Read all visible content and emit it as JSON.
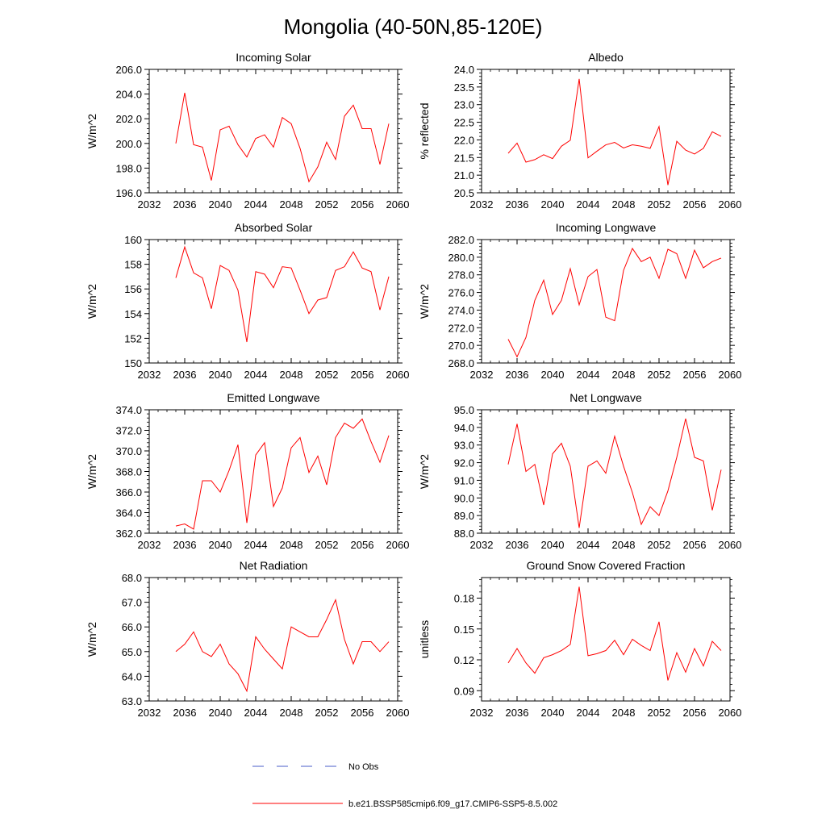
{
  "figure": {
    "title": "Mongolia (40-50N,85-120E)"
  },
  "colors": {
    "model_line": "#ff0000",
    "obs_line": "#4a5ec9",
    "axis": "#000000",
    "background": "#ffffff"
  },
  "legend": {
    "placement": "bottom-center",
    "entries": [
      {
        "label": "No Obs",
        "style": "dashed",
        "color": "#4a5ec9"
      },
      {
        "label": "b.e21.BSSP585cmip6.f09_g17.CMIP6-SSP5-8.5.002",
        "style": "solid",
        "color": "#ff0000"
      }
    ]
  },
  "chart_data": [
    {
      "type": "line",
      "title": "Incoming Solar",
      "xlabel": "",
      "ylabel": "W/m^2",
      "xlim": [
        2032,
        2060
      ],
      "ylim": [
        196,
        206
      ],
      "x_ticks": [
        2032,
        2036,
        2040,
        2044,
        2048,
        2052,
        2056,
        2060
      ],
      "x_tick_labels": [
        "2032",
        "2036",
        "2040",
        "2044",
        "2048",
        "2052",
        "2056",
        "2060"
      ],
      "y_ticks": [
        196,
        198,
        200,
        202,
        204,
        206
      ],
      "y_tick_labels": [
        "196.0",
        "198.0",
        "200.0",
        "202.0",
        "204.0",
        "206.0"
      ],
      "grid": false,
      "x": [
        2035,
        2036,
        2037,
        2038,
        2039,
        2040,
        2041,
        2042,
        2043,
        2044,
        2045,
        2046,
        2047,
        2048,
        2049,
        2050,
        2051,
        2052,
        2053,
        2054,
        2055,
        2056,
        2057,
        2058,
        2059
      ],
      "series": [
        {
          "values": [
            200.0,
            204.1,
            199.9,
            199.7,
            197.0,
            201.1,
            201.4,
            199.9,
            198.9,
            200.4,
            200.7,
            199.7,
            202.1,
            201.6,
            199.6,
            196.9,
            198.1,
            200.1,
            198.7,
            202.2,
            203.1,
            201.2,
            201.2,
            198.3,
            201.6
          ]
        }
      ]
    },
    {
      "type": "line",
      "title": "Albedo",
      "xlabel": "",
      "ylabel": "% reflected",
      "xlim": [
        2032,
        2060
      ],
      "ylim": [
        20.5,
        24.0
      ],
      "x_ticks": [
        2032,
        2036,
        2040,
        2044,
        2048,
        2052,
        2056,
        2060
      ],
      "x_tick_labels": [
        "2032",
        "2036",
        "2040",
        "2044",
        "2048",
        "2052",
        "2056",
        "2060"
      ],
      "y_ticks": [
        20.5,
        21.0,
        21.5,
        22.0,
        22.5,
        23.0,
        23.5,
        24.0
      ],
      "y_tick_labels": [
        "20.5",
        "21.0",
        "21.5",
        "22.0",
        "22.5",
        "23.0",
        "23.5",
        "24.0"
      ],
      "grid": false,
      "x": [
        2035,
        2036,
        2037,
        2038,
        2039,
        2040,
        2041,
        2042,
        2043,
        2044,
        2045,
        2046,
        2047,
        2048,
        2049,
        2050,
        2051,
        2052,
        2053,
        2054,
        2055,
        2056,
        2057,
        2058,
        2059
      ],
      "series": [
        {
          "values": [
            21.62,
            21.91,
            21.37,
            21.44,
            21.58,
            21.47,
            21.82,
            21.99,
            23.73,
            21.49,
            21.68,
            21.86,
            21.93,
            21.77,
            21.86,
            21.82,
            21.76,
            22.38,
            20.72,
            21.96,
            21.71,
            21.6,
            21.76,
            22.23,
            22.1
          ]
        }
      ]
    },
    {
      "type": "line",
      "title": "Absorbed Solar",
      "xlabel": "",
      "ylabel": "W/m^2",
      "xlim": [
        2032,
        2060
      ],
      "ylim": [
        150,
        160
      ],
      "x_ticks": [
        2032,
        2036,
        2040,
        2044,
        2048,
        2052,
        2056,
        2060
      ],
      "x_tick_labels": [
        "2032",
        "2036",
        "2040",
        "2044",
        "2048",
        "2052",
        "2056",
        "2060"
      ],
      "y_ticks": [
        150,
        152,
        154,
        156,
        158,
        160
      ],
      "y_tick_labels": [
        "150",
        "152",
        "154",
        "156",
        "158",
        "160"
      ],
      "grid": false,
      "x": [
        2035,
        2036,
        2037,
        2038,
        2039,
        2040,
        2041,
        2042,
        2043,
        2044,
        2045,
        2046,
        2047,
        2048,
        2049,
        2050,
        2051,
        2052,
        2053,
        2054,
        2055,
        2056,
        2057,
        2058,
        2059
      ],
      "series": [
        {
          "values": [
            156.9,
            159.4,
            157.3,
            156.9,
            154.4,
            157.9,
            157.5,
            155.9,
            151.7,
            157.4,
            157.2,
            156.1,
            157.8,
            157.7,
            155.9,
            154.0,
            155.1,
            155.3,
            157.5,
            157.8,
            159.0,
            157.7,
            157.4,
            154.3,
            157.0
          ]
        }
      ]
    },
    {
      "type": "line",
      "title": "Incoming Longwave",
      "xlabel": "",
      "ylabel": "W/m^2",
      "xlim": [
        2032,
        2060
      ],
      "ylim": [
        268,
        282
      ],
      "x_ticks": [
        2032,
        2036,
        2040,
        2044,
        2048,
        2052,
        2056,
        2060
      ],
      "x_tick_labels": [
        "2032",
        "2036",
        "2040",
        "2044",
        "2048",
        "2052",
        "2056",
        "2060"
      ],
      "y_ticks": [
        268,
        270,
        272,
        274,
        276,
        278,
        280,
        282
      ],
      "y_tick_labels": [
        "268.0",
        "270.0",
        "272.0",
        "274.0",
        "276.0",
        "278.0",
        "280.0",
        "282.0"
      ],
      "grid": false,
      "x": [
        2035,
        2036,
        2037,
        2038,
        2039,
        2040,
        2041,
        2042,
        2043,
        2044,
        2045,
        2046,
        2047,
        2048,
        2049,
        2050,
        2051,
        2052,
        2053,
        2054,
        2055,
        2056,
        2057,
        2058,
        2059
      ],
      "series": [
        {
          "values": [
            270.7,
            268.7,
            270.9,
            275.1,
            277.4,
            273.5,
            275.1,
            278.7,
            274.6,
            277.8,
            278.6,
            273.2,
            272.8,
            278.5,
            281.0,
            279.5,
            280.0,
            277.6,
            280.9,
            280.4,
            277.6,
            280.8,
            278.8,
            279.5,
            279.9
          ]
        }
      ]
    },
    {
      "type": "line",
      "title": "Emitted Longwave",
      "xlabel": "",
      "ylabel": "W/m^2",
      "xlim": [
        2032,
        2060
      ],
      "ylim": [
        362,
        374
      ],
      "x_ticks": [
        2032,
        2036,
        2040,
        2044,
        2048,
        2052,
        2056,
        2060
      ],
      "x_tick_labels": [
        "2032",
        "2036",
        "2040",
        "2044",
        "2048",
        "2052",
        "2056",
        "2060"
      ],
      "y_ticks": [
        362,
        364,
        366,
        368,
        370,
        372,
        374
      ],
      "y_tick_labels": [
        "362.0",
        "364.0",
        "366.0",
        "368.0",
        "370.0",
        "372.0",
        "374.0"
      ],
      "grid": false,
      "x": [
        2035,
        2036,
        2037,
        2038,
        2039,
        2040,
        2041,
        2042,
        2043,
        2044,
        2045,
        2046,
        2047,
        2048,
        2049,
        2050,
        2051,
        2052,
        2053,
        2054,
        2055,
        2056,
        2057,
        2058,
        2059
      ],
      "series": [
        {
          "values": [
            362.7,
            362.9,
            362.4,
            367.1,
            367.1,
            366.0,
            368.1,
            370.6,
            363.0,
            369.6,
            370.8,
            364.6,
            366.4,
            370.3,
            371.3,
            367.9,
            369.5,
            366.7,
            371.3,
            372.7,
            372.2,
            373.1,
            370.9,
            368.9,
            371.5
          ]
        }
      ]
    },
    {
      "type": "line",
      "title": "Net Longwave",
      "xlabel": "",
      "ylabel": "W/m^2",
      "xlim": [
        2032,
        2060
      ],
      "ylim": [
        88,
        95
      ],
      "x_ticks": [
        2032,
        2036,
        2040,
        2044,
        2048,
        2052,
        2056,
        2060
      ],
      "x_tick_labels": [
        "2032",
        "2036",
        "2040",
        "2044",
        "2048",
        "2052",
        "2056",
        "2060"
      ],
      "y_ticks": [
        88,
        89,
        90,
        91,
        92,
        93,
        94,
        95
      ],
      "y_tick_labels": [
        "88.0",
        "89.0",
        "90.0",
        "91.0",
        "92.0",
        "93.0",
        "94.0",
        "95.0"
      ],
      "grid": false,
      "x": [
        2035,
        2036,
        2037,
        2038,
        2039,
        2040,
        2041,
        2042,
        2043,
        2044,
        2045,
        2046,
        2047,
        2048,
        2049,
        2050,
        2051,
        2052,
        2053,
        2054,
        2055,
        2056,
        2057,
        2058,
        2059
      ],
      "series": [
        {
          "values": [
            91.9,
            94.2,
            91.5,
            91.9,
            89.6,
            92.5,
            93.1,
            91.8,
            88.3,
            91.8,
            92.1,
            91.4,
            93.5,
            91.8,
            90.3,
            88.5,
            89.5,
            89.0,
            90.4,
            92.3,
            94.5,
            92.3,
            92.1,
            89.3,
            91.6
          ]
        }
      ]
    },
    {
      "type": "line",
      "title": "Net Radiation",
      "xlabel": "",
      "ylabel": "W/m^2",
      "xlim": [
        2032,
        2060
      ],
      "ylim": [
        63,
        68
      ],
      "x_ticks": [
        2032,
        2036,
        2040,
        2044,
        2048,
        2052,
        2056,
        2060
      ],
      "x_tick_labels": [
        "2032",
        "2036",
        "2040",
        "2044",
        "2048",
        "2052",
        "2056",
        "2060"
      ],
      "y_ticks": [
        63,
        64,
        65,
        66,
        67,
        68
      ],
      "y_tick_labels": [
        "63.0",
        "64.0",
        "65.0",
        "66.0",
        "67.0",
        "68.0"
      ],
      "grid": false,
      "x": [
        2035,
        2036,
        2037,
        2038,
        2039,
        2040,
        2041,
        2042,
        2043,
        2044,
        2045,
        2046,
        2047,
        2048,
        2049,
        2050,
        2051,
        2052,
        2053,
        2054,
        2055,
        2056,
        2057,
        2058,
        2059
      ],
      "series": [
        {
          "values": [
            65.0,
            65.3,
            65.8,
            65.0,
            64.8,
            65.3,
            64.5,
            64.1,
            63.4,
            65.6,
            65.1,
            64.7,
            64.3,
            66.0,
            65.8,
            65.6,
            65.6,
            66.3,
            67.1,
            65.5,
            64.5,
            65.4,
            65.4,
            65.0,
            65.4
          ]
        }
      ]
    },
    {
      "type": "line",
      "title": "Ground Snow Covered Fraction",
      "xlabel": "",
      "ylabel": "unitless",
      "xlim": [
        2032,
        2060
      ],
      "ylim": [
        0.08,
        0.2
      ],
      "x_ticks": [
        2032,
        2036,
        2040,
        2044,
        2048,
        2052,
        2056,
        2060
      ],
      "x_tick_labels": [
        "2032",
        "2036",
        "2040",
        "2044",
        "2048",
        "2052",
        "2056",
        "2060"
      ],
      "y_ticks": [
        0.09,
        0.12,
        0.15,
        0.18
      ],
      "y_tick_labels": [
        "0.09",
        "0.12",
        "0.15",
        "0.18"
      ],
      "grid": false,
      "x": [
        2035,
        2036,
        2037,
        2038,
        2039,
        2040,
        2041,
        2042,
        2043,
        2044,
        2045,
        2046,
        2047,
        2048,
        2049,
        2050,
        2051,
        2052,
        2053,
        2054,
        2055,
        2056,
        2057,
        2058,
        2059
      ],
      "series": [
        {
          "values": [
            0.117,
            0.131,
            0.117,
            0.107,
            0.122,
            0.125,
            0.129,
            0.135,
            0.191,
            0.124,
            0.126,
            0.129,
            0.139,
            0.125,
            0.14,
            0.134,
            0.129,
            0.157,
            0.1,
            0.127,
            0.108,
            0.131,
            0.114,
            0.138,
            0.129
          ]
        }
      ]
    }
  ]
}
